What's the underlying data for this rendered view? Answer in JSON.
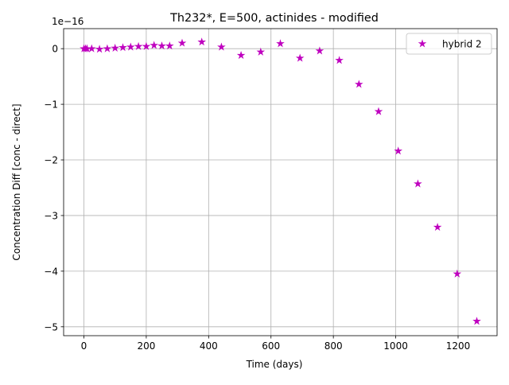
{
  "chart_data": {
    "type": "scatter",
    "title": "Th232*, E=500, actinides - modified",
    "xlabel": "Time (days)",
    "ylabel": "Concentration Diff [conc - direct]",
    "y_offset_text": "1e−16",
    "y_scale_factor": 1e-16,
    "xlim": [
      -65,
      1325
    ],
    "ylim": [
      -5.16,
      0.36
    ],
    "grid": true,
    "legend_position": "upper right",
    "x_ticks": [
      0,
      200,
      400,
      600,
      800,
      1000,
      1200
    ],
    "x_tick_labels": [
      "0",
      "200",
      "400",
      "600",
      "800",
      "1000",
      "1200"
    ],
    "y_ticks": [
      0,
      -1,
      -2,
      -3,
      -4,
      -5
    ],
    "y_tick_labels": [
      "0",
      "−1",
      "−2",
      "−3",
      "−4",
      "−5"
    ],
    "series": [
      {
        "name": "hybrid 2",
        "color": "#bf00bf",
        "marker": "star",
        "x": [
          0,
          5,
          10,
          25,
          50,
          75,
          100,
          125,
          150,
          175,
          200,
          225,
          250,
          275,
          315,
          378,
          441,
          504,
          567,
          630,
          693,
          756,
          819,
          882,
          945,
          1008,
          1071,
          1134,
          1197,
          1260
        ],
        "y": [
          0.0,
          0.0,
          0.0,
          0.0,
          -0.01,
          0.0,
          0.01,
          0.02,
          0.03,
          0.04,
          0.04,
          0.06,
          0.05,
          0.05,
          0.1,
          0.12,
          0.03,
          -0.12,
          -0.06,
          0.09,
          -0.17,
          -0.04,
          -0.21,
          -0.64,
          -1.13,
          -1.84,
          -2.43,
          -3.21,
          -4.05,
          -4.9
        ]
      }
    ]
  }
}
